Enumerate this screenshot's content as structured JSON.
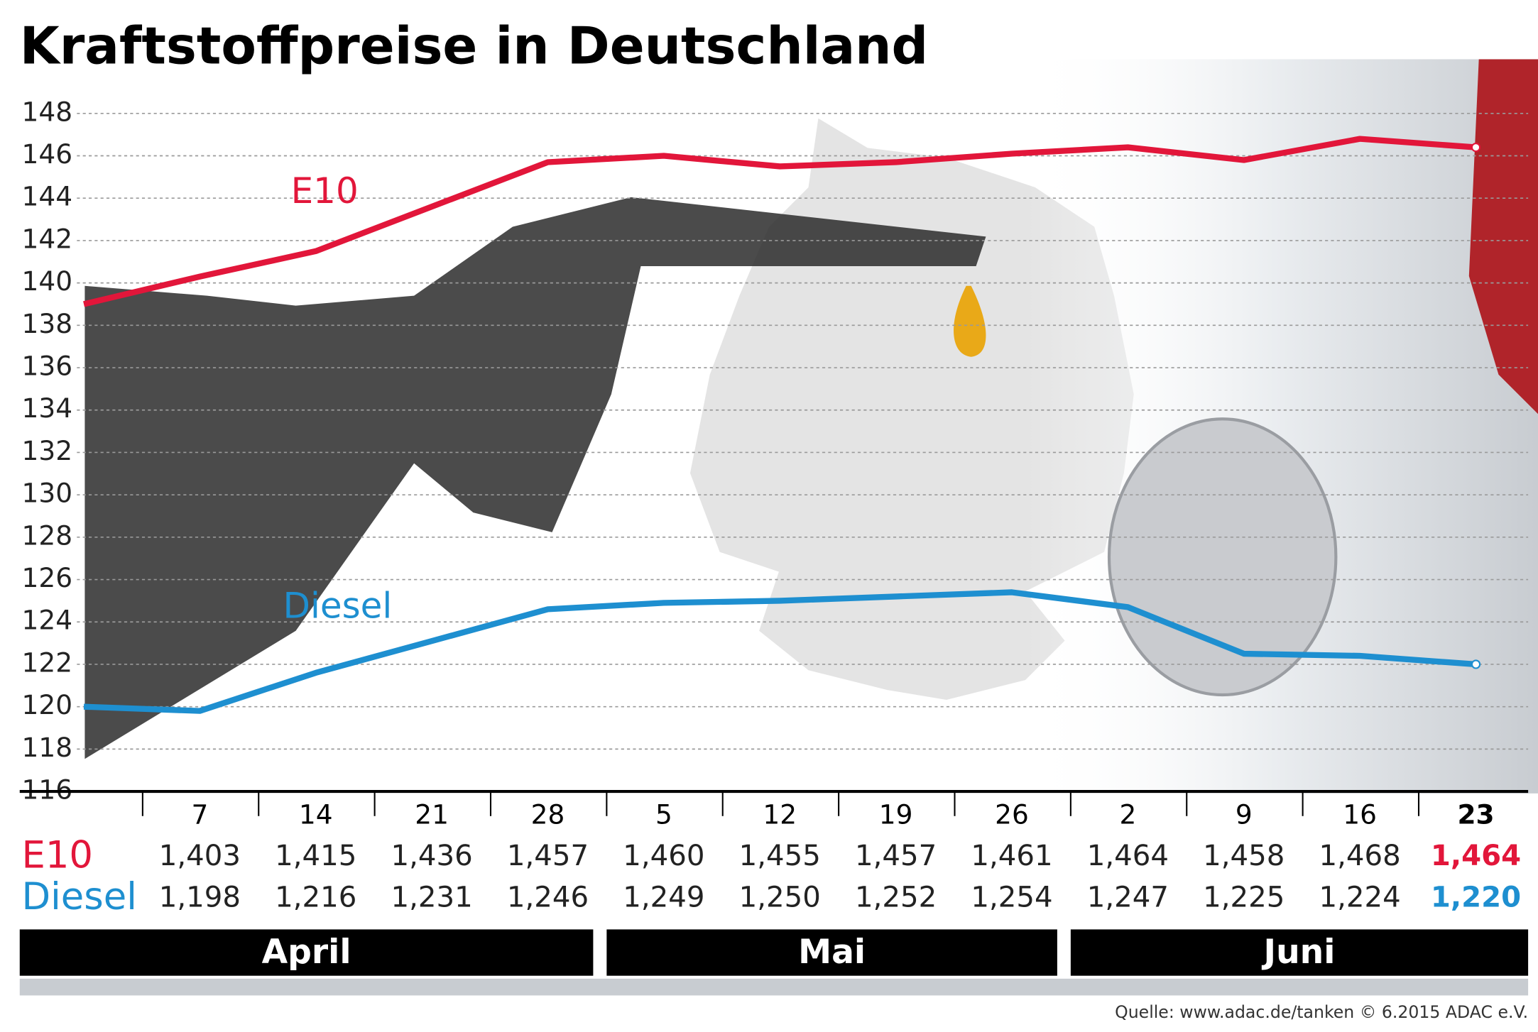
{
  "chart_data": {
    "type": "line",
    "title": "Kraftstoffpreise in Deutschland",
    "categories": [
      null,
      "7",
      "14",
      "21",
      "28",
      "5",
      "12",
      "19",
      "26",
      "2",
      "9",
      "16",
      "23"
    ],
    "series": [
      {
        "name": "E10",
        "color": "#e2163a",
        "values": [
          139.0,
          140.3,
          141.5,
          143.6,
          145.7,
          146.0,
          145.5,
          145.7,
          146.1,
          146.4,
          145.8,
          146.8,
          146.4
        ],
        "value_labels": [
          null,
          "1,403",
          "1,415",
          "1,436",
          "1,457",
          "1,460",
          "1,455",
          "1,457",
          "1,461",
          "1,464",
          "1,458",
          "1,468",
          "1,464"
        ]
      },
      {
        "name": "Diesel",
        "color": "#1e8fd0",
        "values": [
          120.0,
          119.8,
          121.6,
          123.1,
          124.6,
          124.9,
          125.0,
          125.2,
          125.4,
          124.7,
          122.5,
          122.4,
          122.0
        ],
        "value_labels": [
          null,
          "1,198",
          "1,216",
          "1,231",
          "1,246",
          "1,249",
          "1,250",
          "1,252",
          "1,254",
          "1,247",
          "1,225",
          "1,224",
          "1,220"
        ]
      }
    ],
    "ylim": [
      116,
      148
    ],
    "yticks": [
      116,
      118,
      120,
      122,
      124,
      126,
      128,
      130,
      132,
      134,
      136,
      138,
      140,
      142,
      144,
      146,
      148
    ],
    "grid": true,
    "months": [
      "April",
      "Mai",
      "Juni"
    ],
    "source": "Quelle: www.adac.de/tanken   © 6.2015   ADAC e.V."
  }
}
